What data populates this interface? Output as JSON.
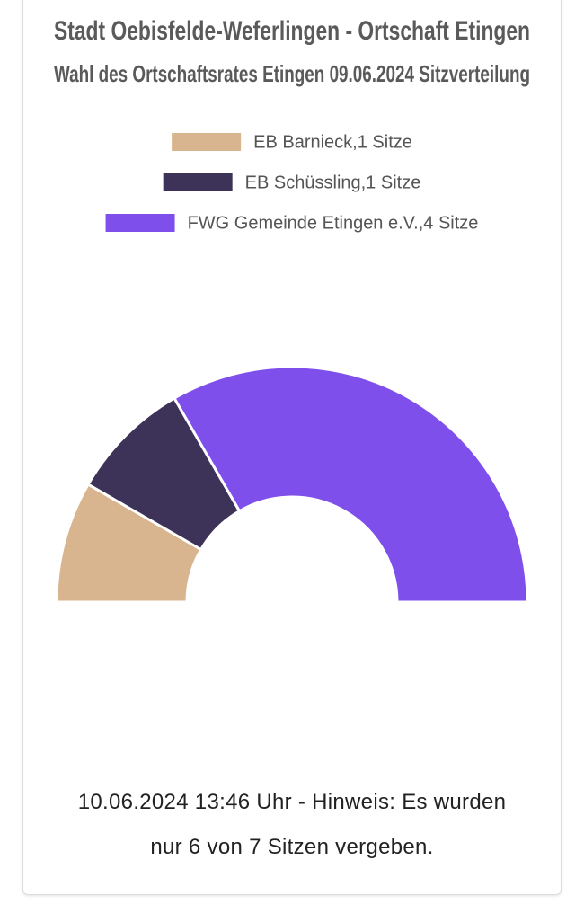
{
  "chart_data": {
    "type": "half-donut",
    "title": "Stadt Oebisfelde-Weferlingen - Ortschaft Etingen",
    "subtitle": "Wahl des Ortschaftsrates Etingen 09.06.2024 Sitzverteilung",
    "series": [
      {
        "name": "EB Barnieck,1 Sitze",
        "color": "#d8b48f",
        "value": 1
      },
      {
        "name": "EB Schüssling,1 Sitze",
        "color": "#3d3258",
        "value": 1
      },
      {
        "name": "FWG Gemeinde Etingen e.V.,4 Sitze",
        "color": "#7f4fec",
        "value": 4
      }
    ],
    "note": "10.06.2024 13:46 Uhr - Hinweis: Es wurden nur 6 von 7 Sitzen vergeben."
  }
}
